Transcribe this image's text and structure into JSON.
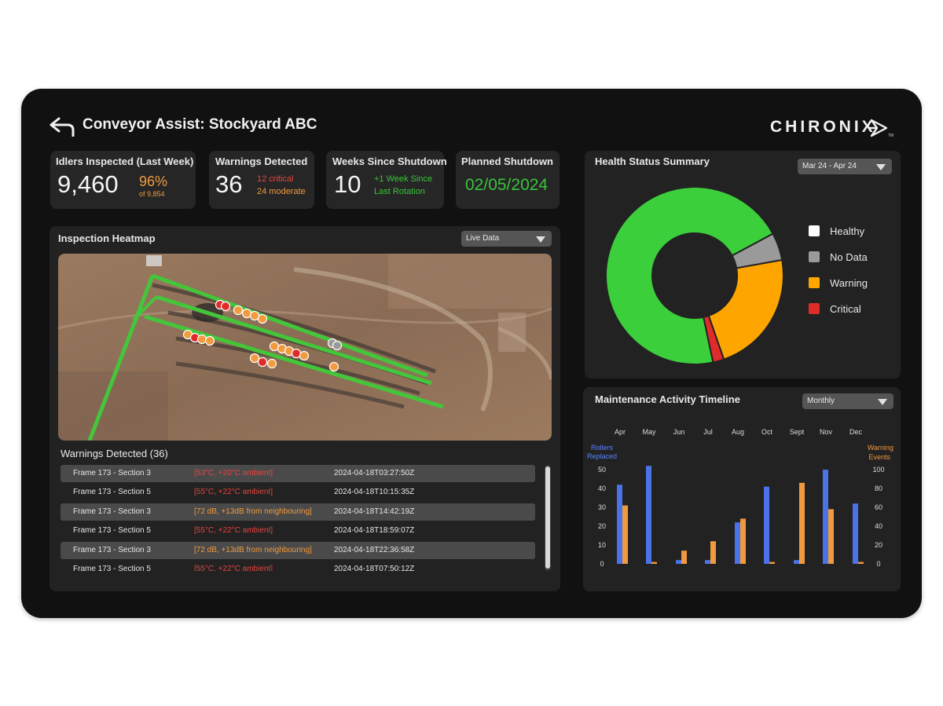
{
  "header": {
    "title": "Conveyor Assist: Stockyard ABC",
    "logo_text": "CHIRONIX",
    "logo_tm": "TM"
  },
  "stats": {
    "idlers": {
      "label": "Idlers Inspected (Last Week)",
      "value": "9,460",
      "percent": "96%",
      "of_total": "of 9,854"
    },
    "warnings": {
      "label": "Warnings Detected",
      "value": "36",
      "critical": "12 critical",
      "moderate": "24 moderate"
    },
    "weeks": {
      "label": "Weeks Since Shutdown",
      "value": "10",
      "note_line1": "+1 Week Since",
      "note_line2": "Last Rotation"
    },
    "planned": {
      "label": "Planned Shutdown",
      "date": "02/05/2024"
    }
  },
  "heatmap": {
    "title": "Inspection Heatmap",
    "dropdown": "Live Data"
  },
  "warnings_list": {
    "title": "Warnings Detected (36)",
    "rows": [
      {
        "frame": "Frame 173 - Section 3",
        "detail": "[53°C, +20°C ambient]",
        "level": "critical",
        "time": "2024-04-18T03:27:50Z"
      },
      {
        "frame": "Frame 173 - Section 5",
        "detail": "[55°C, +22°C ambient]",
        "level": "critical",
        "time": "2024-04-18T10:15:35Z"
      },
      {
        "frame": "Frame 173 - Section 3",
        "detail": "[72 dB, +13dB from neighbouring]",
        "level": "warning",
        "time": "2024-04-18T14:42:19Z"
      },
      {
        "frame": "Frame 173 - Section 5",
        "detail": "[55°C, +22°C ambient]",
        "level": "critical",
        "time": "2024-04-18T18:59:07Z"
      },
      {
        "frame": "Frame 173 - Section 3",
        "detail": "[72 dB, +13dB from neighbouring]",
        "level": "warning",
        "time": "2024-04-18T22:36:58Z"
      },
      {
        "frame": "Frame 173 - Section 5",
        "detail": "[55°C, +22°C ambient]",
        "level": "critical",
        "time": "2024-04-18T07:50:12Z"
      }
    ]
  },
  "health": {
    "title": "Health Status Summary",
    "dropdown": "Mar 24 - Apr 24",
    "legend": [
      {
        "label": "Healthy",
        "color": "#ffffff"
      },
      {
        "label": "No Data",
        "color": "#9a9a9a"
      },
      {
        "label": "Warning",
        "color": "#ffa500"
      },
      {
        "label": "Critical",
        "color": "#e02b2b"
      }
    ]
  },
  "timeline": {
    "title": "Maintenance Activity Timeline",
    "dropdown": "Monthly",
    "left_axis_label": [
      "Rollers",
      "Replaced"
    ],
    "right_axis_label": [
      "Warning",
      "Events"
    ]
  },
  "colors": {
    "healthy_slice": "#3ccf3c",
    "nodata_slice": "#9a9a9a",
    "warning_slice": "#ffa500",
    "critical_slice": "#e02b2b",
    "rollers_bar": "#4a73e8",
    "warnings_bar": "#f0993e"
  },
  "chart_data": [
    {
      "type": "pie",
      "title": "Health Status Summary",
      "labels": [
        "Healthy",
        "No Data",
        "Warning",
        "Critical"
      ],
      "values": [
        70.5,
        5,
        22.5,
        2
      ]
    },
    {
      "type": "bar",
      "title": "Maintenance Activity Timeline",
      "categories": [
        "Apr",
        "May",
        "Jun",
        "Jul",
        "Aug",
        "Oct",
        "Sept",
        "Nov",
        "Dec"
      ],
      "series": [
        {
          "name": "Rollers Replaced",
          "axis": "left",
          "values": [
            42,
            52,
            2,
            2,
            22,
            41,
            2,
            50,
            32
          ]
        },
        {
          "name": "Warning Events",
          "axis": "right",
          "values": [
            62,
            2,
            14,
            24,
            48,
            2,
            86,
            58,
            2
          ]
        }
      ],
      "ylim_left": [
        0,
        50
      ],
      "ylim_right": [
        0,
        100
      ],
      "yticks_left": [
        0,
        10,
        20,
        30,
        40,
        50
      ],
      "yticks_right": [
        0,
        20,
        40,
        60,
        80,
        100
      ]
    }
  ]
}
